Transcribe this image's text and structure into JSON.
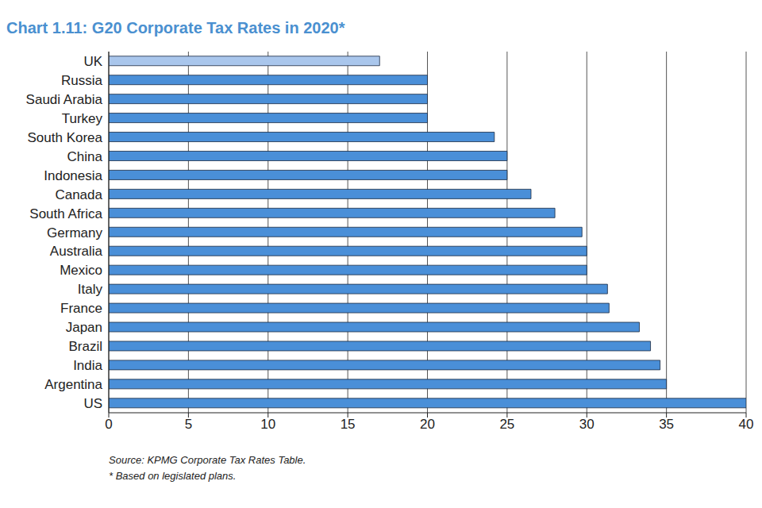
{
  "chart_data": {
    "type": "bar",
    "orientation": "horizontal",
    "title": "Chart 1.11: G20 Corporate Tax Rates in 2020*",
    "categories": [
      "UK",
      "Russia",
      "Saudi Arabia",
      "Turkey",
      "South Korea",
      "China",
      "Indonesia",
      "Canada",
      "South Africa",
      "Germany",
      "Australia",
      "Mexico",
      "Italy",
      "France",
      "Japan",
      "Brazil",
      "India",
      "Argentina",
      "US"
    ],
    "values": [
      17,
      20,
      20,
      20,
      24.2,
      25,
      25,
      26.5,
      28,
      29.7,
      30,
      30,
      31.3,
      31.4,
      33.3,
      34,
      34.6,
      35,
      40
    ],
    "colors": [
      "#a9c6ec",
      "#4a8fd8",
      "#4a8fd8",
      "#4a8fd8",
      "#4a8fd8",
      "#4a8fd8",
      "#4a8fd8",
      "#4a8fd8",
      "#4a8fd8",
      "#4a8fd8",
      "#4a8fd8",
      "#4a8fd8",
      "#4a8fd8",
      "#4a8fd8",
      "#4a8fd8",
      "#4a8fd8",
      "#4a8fd8",
      "#4a8fd8",
      "#4a8fd8"
    ],
    "xlim": [
      0,
      40
    ],
    "xticks": [
      0,
      5,
      10,
      15,
      20,
      25,
      30,
      35,
      40
    ],
    "grid": true,
    "annotations": [
      "Source: KPMG Corporate Tax Rates Table.",
      "* Based on legislated plans."
    ]
  }
}
